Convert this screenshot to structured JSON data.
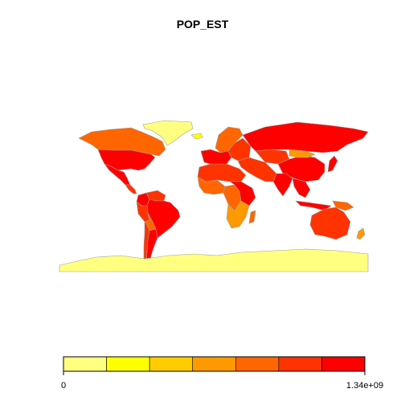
{
  "title": "POP_EST",
  "legend": {
    "min_label": "0",
    "max_label": "1.34e+09",
    "min_value": 0,
    "max_value": 1340000000,
    "bins": 7,
    "colors": [
      "#ffff80",
      "#ffff00",
      "#ffcc00",
      "#ff9900",
      "#ff6600",
      "#ff3300",
      "#ff0000"
    ]
  },
  "style": {
    "ocean": "#ffffff",
    "border": "#a0a0a0",
    "antarctica": "#ffff80"
  },
  "regions": [
    {
      "name": "Greenland",
      "class": 0
    },
    {
      "name": "Canada",
      "class": 4
    },
    {
      "name": "United States",
      "class": 6
    },
    {
      "name": "Mexico",
      "class": 6
    },
    {
      "name": "Central America",
      "class": 5
    },
    {
      "name": "Colombia",
      "class": 6
    },
    {
      "name": "Venezuela",
      "class": 5
    },
    {
      "name": "Brazil",
      "class": 6
    },
    {
      "name": "Peru",
      "class": 5
    },
    {
      "name": "Bolivia",
      "class": 4
    },
    {
      "name": "Argentina",
      "class": 6
    },
    {
      "name": "Chile",
      "class": 5
    },
    {
      "name": "Iceland",
      "class": 1
    },
    {
      "name": "Scandinavia",
      "class": 4
    },
    {
      "name": "Western Europe",
      "class": 6
    },
    {
      "name": "Eastern Europe",
      "class": 5
    },
    {
      "name": "Russia",
      "class": 6
    },
    {
      "name": "Kazakhstan",
      "class": 5
    },
    {
      "name": "China",
      "class": 6
    },
    {
      "name": "Mongolia",
      "class": 3
    },
    {
      "name": "India",
      "class": 6
    },
    {
      "name": "Middle East",
      "class": 5
    },
    {
      "name": "Southeast Asia",
      "class": 6
    },
    {
      "name": "Japan",
      "class": 6
    },
    {
      "name": "Indonesia",
      "class": 6
    },
    {
      "name": "Papua New Guinea",
      "class": 4
    },
    {
      "name": "Australia",
      "class": 5
    },
    {
      "name": "New Zealand",
      "class": 3
    },
    {
      "name": "North Africa",
      "class": 5
    },
    {
      "name": "West Africa",
      "class": 4
    },
    {
      "name": "Central Africa",
      "class": 4
    },
    {
      "name": "East Africa",
      "class": 6
    },
    {
      "name": "Southern Africa",
      "class": 3
    },
    {
      "name": "Madagascar",
      "class": 4
    },
    {
      "name": "Antarctica",
      "class": 0
    }
  ]
}
